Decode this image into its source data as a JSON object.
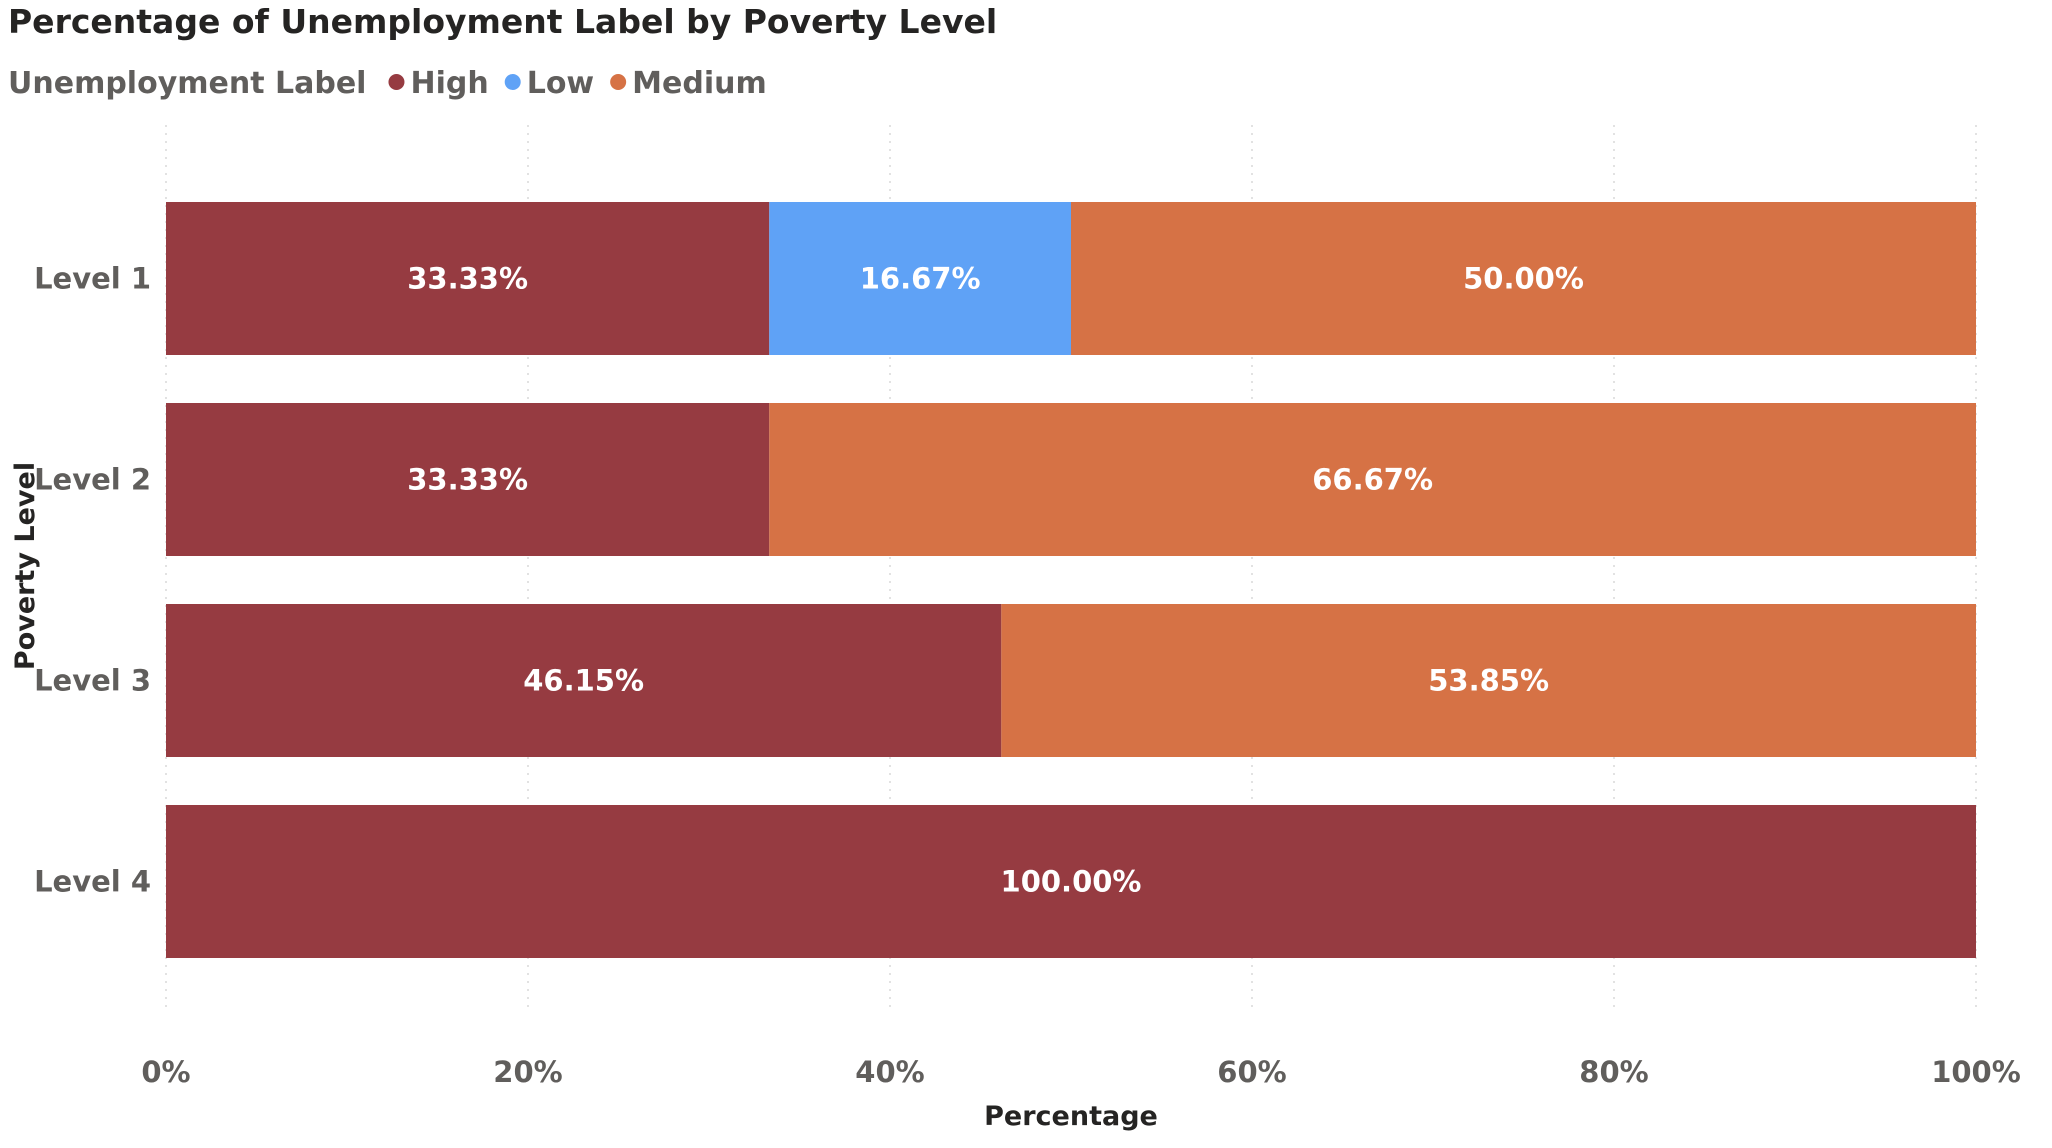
{
  "chart_data": {
    "type": "bar",
    "orientation": "horizontal",
    "stacked": "100%",
    "title": "Percentage of Unemployment Label by Poverty Level",
    "legend_title": "Unemployment Label",
    "legend_position": "top-left",
    "xlabel": "Percentage",
    "ylabel": "Poverty Level",
    "xlim": [
      0,
      100
    ],
    "x_ticks": [
      "0%",
      "20%",
      "40%",
      "60%",
      "80%",
      "100%"
    ],
    "grid": true,
    "categories": [
      "Level 1",
      "Level 2",
      "Level 3",
      "Level 4"
    ],
    "series": [
      {
        "name": "High",
        "color": "#963b41",
        "values": [
          33.33,
          33.33,
          46.15,
          100.0
        ],
        "labels": [
          "33.33%",
          "33.33%",
          "46.15%",
          "100.00%"
        ]
      },
      {
        "name": "Low",
        "color": "#5fa2f6",
        "values": [
          16.67,
          0,
          0,
          0
        ],
        "labels": [
          "16.67%",
          "",
          "",
          ""
        ]
      },
      {
        "name": "Medium",
        "color": "#d67245",
        "values": [
          50.0,
          66.67,
          53.85,
          0
        ],
        "labels": [
          "50.00%",
          "66.67%",
          "53.85%",
          ""
        ]
      }
    ]
  }
}
